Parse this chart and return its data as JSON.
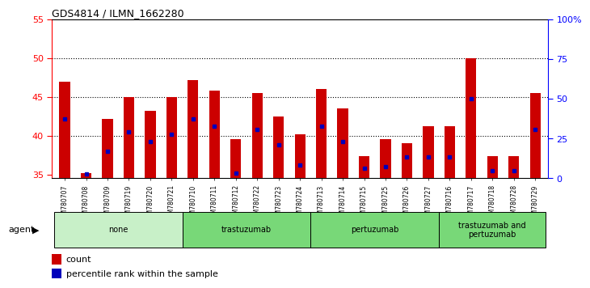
{
  "title": "GDS4814 / ILMN_1662280",
  "samples": [
    "GSM780707",
    "GSM780708",
    "GSM780709",
    "GSM780719",
    "GSM780720",
    "GSM780721",
    "GSM780710",
    "GSM780711",
    "GSM780712",
    "GSM780722",
    "GSM780723",
    "GSM780724",
    "GSM780713",
    "GSM780714",
    "GSM780715",
    "GSM780725",
    "GSM780726",
    "GSM780727",
    "GSM780716",
    "GSM780717",
    "GSM780718",
    "GSM780728",
    "GSM780729"
  ],
  "counts": [
    47.0,
    35.2,
    42.2,
    45.0,
    43.2,
    45.0,
    47.2,
    45.8,
    39.5,
    45.5,
    42.5,
    40.2,
    46.0,
    43.5,
    37.3,
    39.5,
    39.0,
    41.2,
    41.2,
    50.0,
    37.3,
    37.3,
    45.5
  ],
  "percentile_rank_val": [
    42.2,
    35.1,
    38.0,
    40.5,
    39.2,
    40.2,
    42.2,
    41.2,
    35.2,
    40.8,
    38.8,
    36.2,
    41.2,
    39.2,
    35.8,
    36.0,
    37.2,
    37.2,
    37.2,
    44.8,
    35.5,
    35.5,
    40.8
  ],
  "groups": [
    {
      "label": "none",
      "start": 0,
      "end": 5,
      "color": "#c8f0c8"
    },
    {
      "label": "trastuzumab",
      "start": 6,
      "end": 11,
      "color": "#78d878"
    },
    {
      "label": "pertuzumab",
      "start": 12,
      "end": 17,
      "color": "#78d878"
    },
    {
      "label": "trastuzumab and\npertuzumab",
      "start": 18,
      "end": 22,
      "color": "#78d878"
    }
  ],
  "ylim_left": [
    34.5,
    55.0
  ],
  "ylim_right": [
    0,
    100
  ],
  "yticks_left": [
    35,
    40,
    45,
    50,
    55
  ],
  "yticks_right": [
    0,
    25,
    50,
    75,
    100
  ],
  "ytick_labels_right": [
    "0",
    "25",
    "50",
    "75",
    "100%"
  ],
  "grid_lines": [
    40,
    45,
    50
  ],
  "bar_color": "#cc0000",
  "dot_color": "#0000bb",
  "bar_width": 0.5,
  "background_color": "#ffffff"
}
